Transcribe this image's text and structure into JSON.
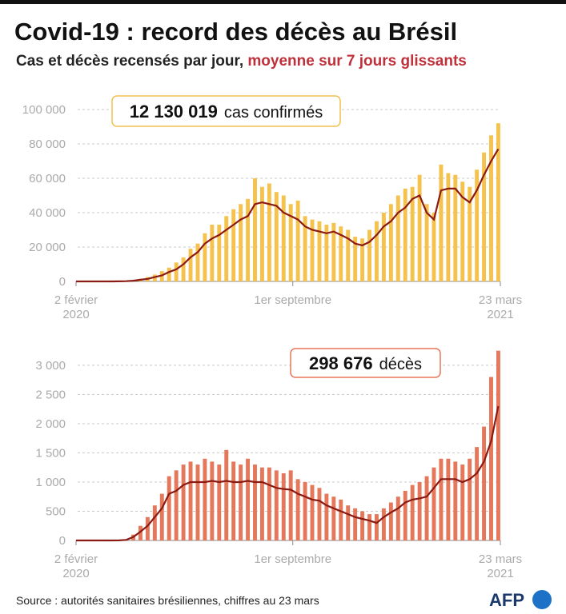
{
  "title": "Covid-19 : record des décès au Brésil",
  "subtitle": {
    "text": "Cas et décès recensés par jour,",
    "highlight": "moyenne sur 7 jours glissants"
  },
  "source": "Source : autorités sanitaires brésiliennes, chiffres au 23 mars",
  "logo": "AFP",
  "chart_data": [
    {
      "type": "bar",
      "annotation": {
        "value": "12 130 019",
        "label": "cas confirmés"
      },
      "x": [
        0,
        7,
        14,
        21,
        28,
        35,
        42,
        49,
        56,
        63,
        70,
        77,
        84,
        91,
        98,
        105,
        112,
        119,
        126,
        133,
        140,
        147,
        154,
        161,
        168,
        175,
        182,
        189,
        196,
        203,
        210,
        217,
        224,
        231,
        238,
        245,
        252,
        259,
        266,
        273,
        280,
        287,
        294,
        301,
        308,
        315,
        322,
        329,
        336,
        343,
        350,
        357,
        364,
        371,
        378,
        385,
        392,
        399,
        406,
        413
      ],
      "xlim": [
        0,
        415
      ],
      "xticks": [
        {
          "value": 0,
          "label": "2 février\n2020"
        },
        {
          "value": 212,
          "label": "1er septembre"
        },
        {
          "value": 415,
          "label": "23 mars\n2021"
        }
      ],
      "ylim": [
        0,
        100000
      ],
      "yticks": [
        0,
        {
          "value": 20000,
          "label": "20 000"
        },
        {
          "value": 40000,
          "label": "40 000"
        },
        {
          "value": 60000,
          "label": "60 000"
        },
        {
          "value": 80000,
          "label": "80 000"
        },
        {
          "value": 100000,
          "label": "100 000"
        }
      ],
      "grid": true,
      "series": [
        {
          "type": "bar",
          "color": "#f6c24e",
          "values": [
            0,
            0,
            0,
            0,
            0,
            20,
            100,
            300,
            700,
            1500,
            2500,
            4000,
            6000,
            8000,
            11000,
            14000,
            19000,
            22000,
            28000,
            33000,
            33000,
            38000,
            42000,
            45000,
            48000,
            60000,
            55000,
            57000,
            52000,
            50000,
            45000,
            47000,
            38000,
            36000,
            35000,
            33000,
            34000,
            32000,
            30000,
            26000,
            25000,
            30000,
            35000,
            40000,
            45000,
            50000,
            54000,
            55000,
            62000,
            45000,
            40000,
            68000,
            63000,
            62000,
            58000,
            55000,
            65000,
            75000,
            85000,
            92000
          ]
        },
        {
          "type": "line",
          "color": "#8b1a12",
          "values": [
            0,
            0,
            0,
            0,
            0,
            10,
            40,
            150,
            400,
            1000,
            1500,
            2500,
            3500,
            5500,
            7000,
            10000,
            14000,
            17000,
            22000,
            25000,
            27000,
            30000,
            33000,
            36000,
            38000,
            45000,
            46000,
            45000,
            44000,
            40000,
            38000,
            36000,
            32000,
            30000,
            29000,
            28000,
            29000,
            27000,
            25000,
            22000,
            21000,
            23000,
            27000,
            32000,
            35000,
            40000,
            43000,
            48000,
            50000,
            40000,
            36000,
            53000,
            54000,
            54000,
            49000,
            46000,
            53000,
            62000,
            70000,
            77000
          ]
        }
      ]
    },
    {
      "type": "bar",
      "annotation": {
        "value": "298 676",
        "label": "décès"
      },
      "x": [
        0,
        7,
        14,
        21,
        28,
        35,
        42,
        49,
        56,
        63,
        70,
        77,
        84,
        91,
        98,
        105,
        112,
        119,
        126,
        133,
        140,
        147,
        154,
        161,
        168,
        175,
        182,
        189,
        196,
        203,
        210,
        217,
        224,
        231,
        238,
        245,
        252,
        259,
        266,
        273,
        280,
        287,
        294,
        301,
        308,
        315,
        322,
        329,
        336,
        343,
        350,
        357,
        364,
        371,
        378,
        385,
        392,
        399,
        406,
        413
      ],
      "xlim": [
        0,
        415
      ],
      "xticks": [
        {
          "value": 0,
          "label": "2 février\n2020"
        },
        {
          "value": 212,
          "label": "1er septembre"
        },
        {
          "value": 415,
          "label": "23 mars\n2021"
        }
      ],
      "ylim": [
        0,
        3300
      ],
      "yticks": [
        0,
        500,
        {
          "value": 1000,
          "label": "1 000"
        },
        {
          "value": 1500,
          "label": "1 500"
        },
        {
          "value": 2000,
          "label": "2 000"
        },
        {
          "value": 2500,
          "label": "2 500"
        },
        {
          "value": 3000,
          "label": "3 000"
        }
      ],
      "grid": true,
      "series": [
        {
          "type": "bar",
          "color": "#e5775a",
          "values": [
            0,
            0,
            0,
            0,
            0,
            0,
            5,
            20,
            100,
            250,
            400,
            600,
            800,
            1100,
            1200,
            1300,
            1350,
            1300,
            1400,
            1350,
            1300,
            1550,
            1350,
            1300,
            1400,
            1300,
            1250,
            1250,
            1200,
            1150,
            1200,
            1050,
            1000,
            950,
            900,
            800,
            750,
            700,
            600,
            550,
            500,
            450,
            450,
            550,
            650,
            750,
            850,
            950,
            1000,
            1100,
            1250,
            1400,
            1400,
            1350,
            1300,
            1400,
            1600,
            1950,
            2800,
            3250
          ]
        },
        {
          "type": "line",
          "color": "#8b1a12",
          "values": [
            0,
            0,
            0,
            0,
            0,
            0,
            2,
            10,
            60,
            150,
            250,
            400,
            550,
            800,
            850,
            950,
            1000,
            1000,
            1000,
            1020,
            1000,
            1020,
            1000,
            1000,
            1020,
            1000,
            1000,
            950,
            900,
            880,
            870,
            800,
            750,
            700,
            680,
            600,
            550,
            500,
            450,
            400,
            370,
            340,
            300,
            400,
            480,
            550,
            650,
            700,
            720,
            750,
            900,
            1050,
            1050,
            1050,
            1000,
            1050,
            1150,
            1350,
            1700,
            2300
          ]
        }
      ]
    }
  ]
}
